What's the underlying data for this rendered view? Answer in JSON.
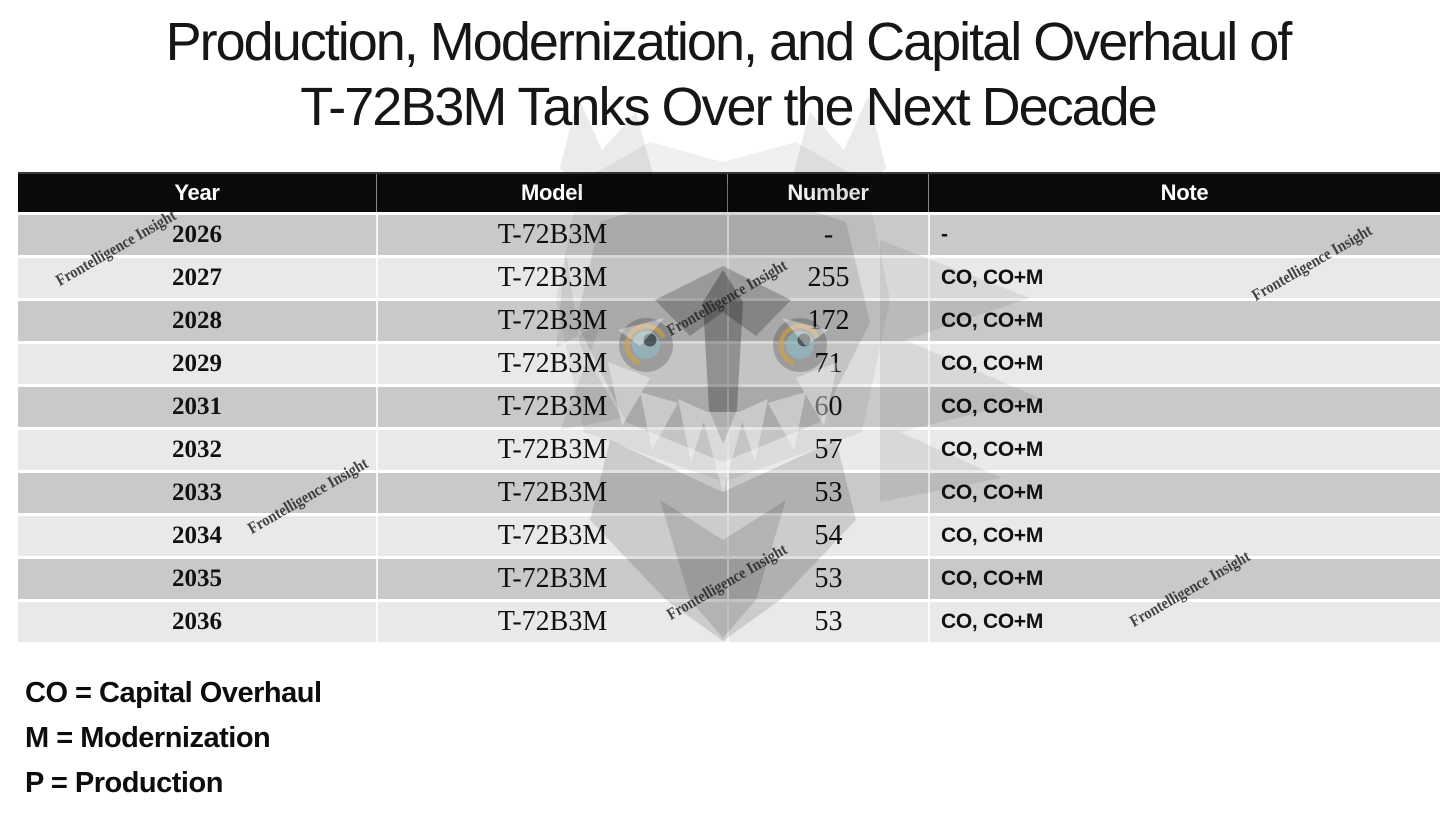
{
  "title": {
    "line1": "Production, Modernization, and Capital Overhaul of",
    "line2": "T-72B3M Tanks Over the Next Decade"
  },
  "chart_data": {
    "type": "table",
    "title": "Production, Modernization, and Capital Overhaul of T-72B3M Tanks Over the Next Decade",
    "columns": [
      "Year",
      "Model",
      "Number",
      "Note"
    ],
    "rows": [
      {
        "year": "2026",
        "model": "T-72B3M",
        "number": "-",
        "note": "-"
      },
      {
        "year": "2027",
        "model": "T-72B3M",
        "number": "255",
        "note": "CO, CO+M"
      },
      {
        "year": "2028",
        "model": "T-72B3M",
        "number": "172",
        "note": "CO, CO+M"
      },
      {
        "year": "2029",
        "model": "T-72B3M",
        "number": "71",
        "note": "CO, CO+M"
      },
      {
        "year": "2031",
        "model": "T-72B3M",
        "number": "60",
        "note": "CO, CO+M"
      },
      {
        "year": "2032",
        "model": "T-72B3M",
        "number": "57",
        "note": "CO, CO+M"
      },
      {
        "year": "2033",
        "model": "T-72B3M",
        "number": "53",
        "note": "CO, CO+M"
      },
      {
        "year": "2034",
        "model": "T-72B3M",
        "number": "54",
        "note": "CO, CO+M"
      },
      {
        "year": "2035",
        "model": "T-72B3M",
        "number": "53",
        "note": "CO, CO+M"
      },
      {
        "year": "2036",
        "model": "T-72B3M",
        "number": "53",
        "note": "CO, CO+M"
      }
    ]
  },
  "legend": {
    "line1": "CO = Capital Overhaul",
    "line2": "M = Modernization",
    "line3": "P = Production"
  },
  "watermark": {
    "text": "Frontelligence Insight"
  },
  "colors": {
    "header_bg": "#0a0a0a",
    "header_text": "#ffffff",
    "row_dark": "#c9c9c9",
    "row_light": "#e9e9e9",
    "owl_eye_iris": "#8fc3cf",
    "owl_eye_ring": "#d9a43b"
  }
}
